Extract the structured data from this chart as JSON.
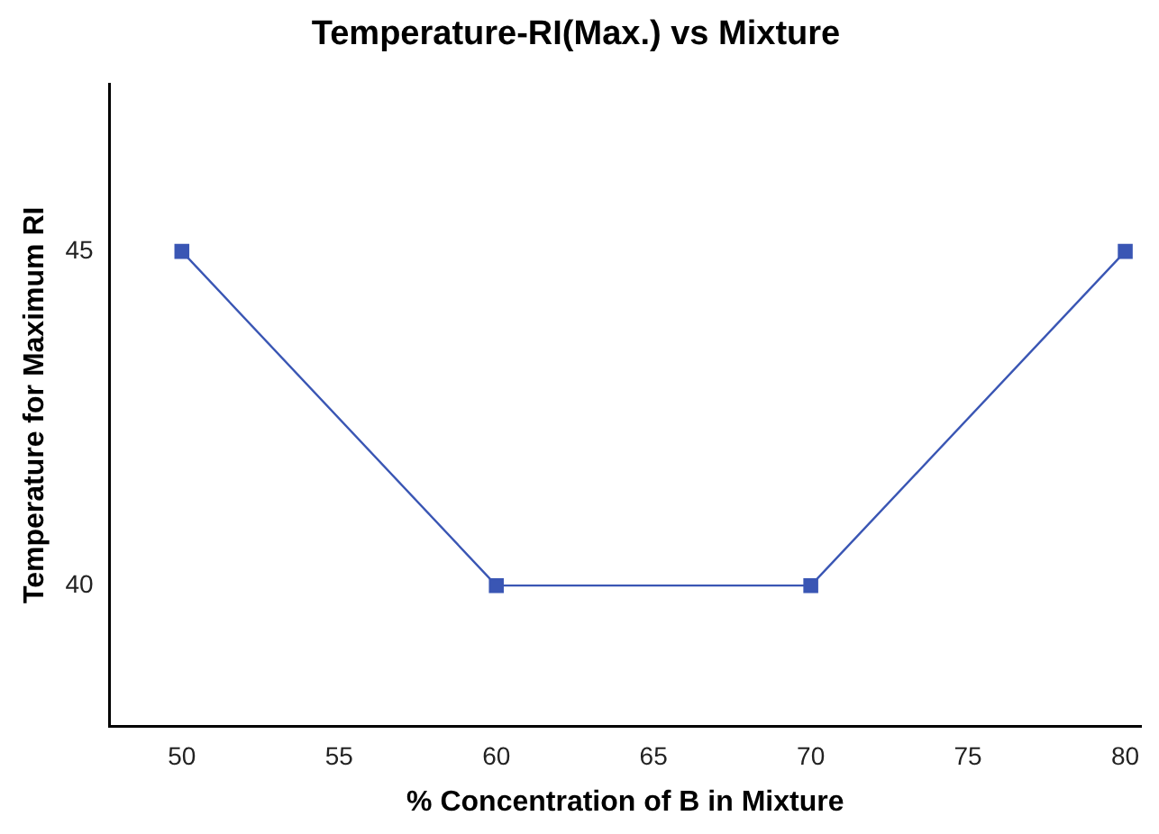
{
  "chart_data": {
    "type": "line",
    "title": "Temperature-RI(Max.) vs Mixture",
    "xlabel": "% Concentration of B in Mixture",
    "ylabel": "Temperature for Maximum RI",
    "x": [
      50,
      60,
      70,
      80
    ],
    "series": [
      {
        "color": "#3a56b4",
        "values": [
          45,
          40,
          40,
          45
        ]
      }
    ],
    "xlim": [
      47.7,
      80.5
    ],
    "xticks": [
      50,
      55,
      60,
      65,
      70,
      75,
      80
    ],
    "ylim": [
      37.9,
      47.5
    ],
    "yticks": [
      40,
      45
    ],
    "grid": false,
    "legend": false,
    "marker": "square",
    "line_style": "solid"
  }
}
